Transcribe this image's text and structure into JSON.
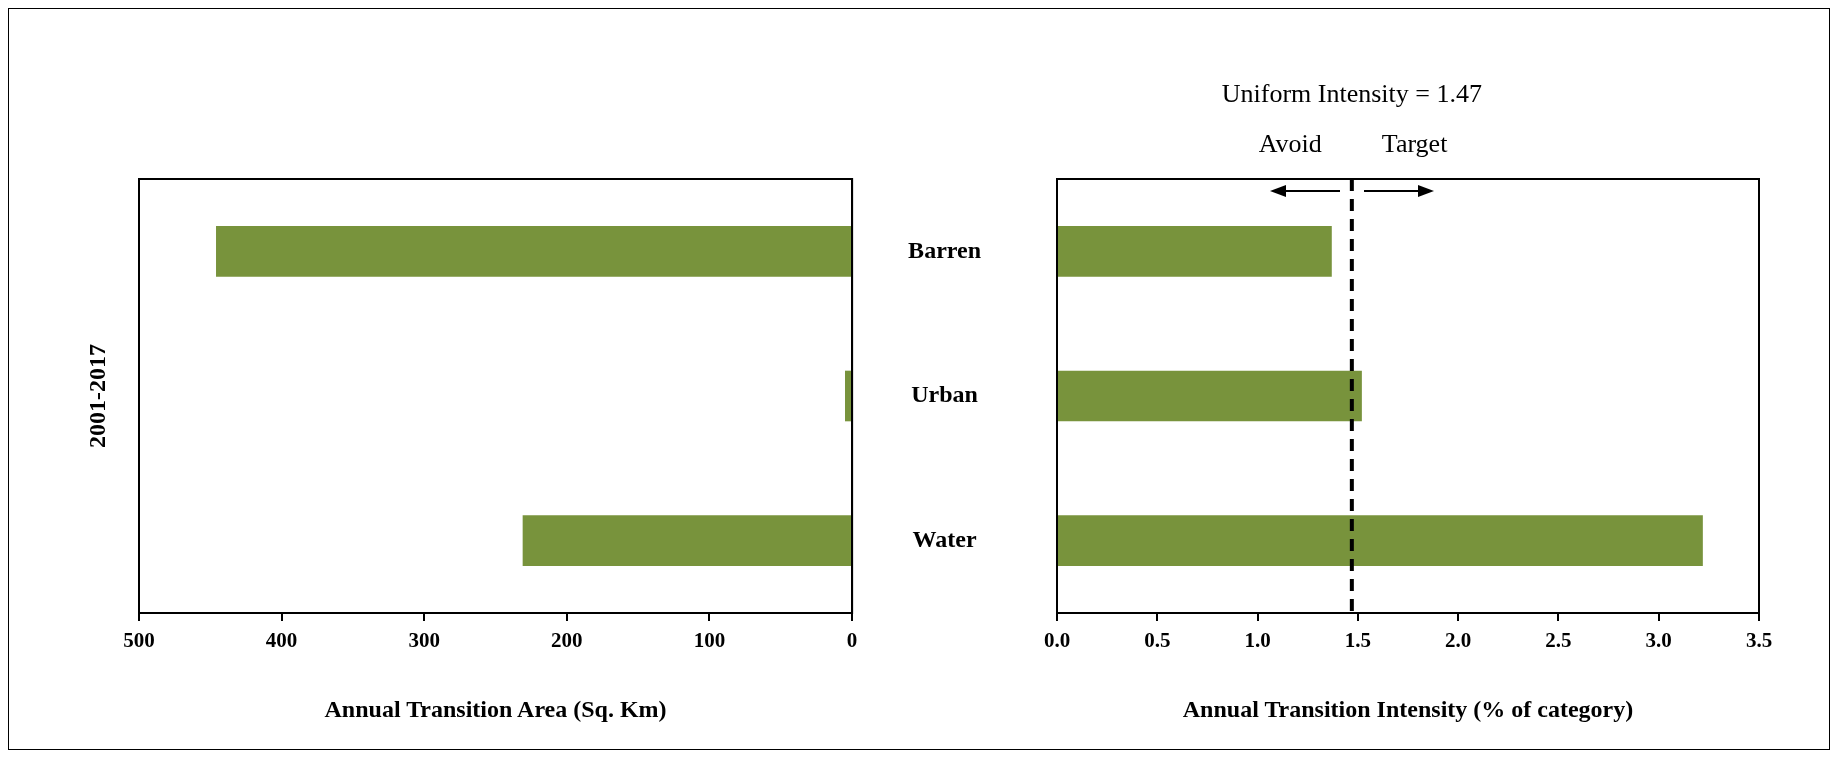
{
  "chart_data": [
    {
      "type": "bar",
      "orientation": "horizontal",
      "ylabel": "2001-2017",
      "xlabel": "Annual Transition Area (Sq. Km)",
      "categories": [
        "Barren",
        "Urban",
        "Water"
      ],
      "values": [
        446,
        5,
        231
      ],
      "color": "#78933c",
      "xlim": [
        500,
        0
      ],
      "xticks": [
        500,
        400,
        300,
        200,
        100,
        0
      ],
      "grid": false
    },
    {
      "type": "bar",
      "orientation": "horizontal",
      "xlabel": "Annual Transition Intensity (% of category)",
      "categories": [
        null,
        null,
        null
      ],
      "values": [
        1.37,
        1.52,
        3.22
      ],
      "color": "#78933c",
      "xlim": [
        0,
        3.5
      ],
      "xticks": [
        {
          "value": 0,
          "label": "0.0"
        },
        0.5,
        {
          "value": 1,
          "label": "1.0"
        },
        1.5,
        {
          "value": 2,
          "label": "2.0"
        },
        2.5,
        {
          "value": 3,
          "label": "3.0"
        },
        3.5
      ],
      "grid": false,
      "tick_labels": "x",
      "ref_lines": [
        {
          "axis": "x",
          "value": 1.47,
          "label": "Uniform Intensity = 1.47",
          "color": "#000000",
          "line_style": "dashed"
        }
      ],
      "annotations": [
        "Avoid",
        "Target"
      ]
    }
  ]
}
